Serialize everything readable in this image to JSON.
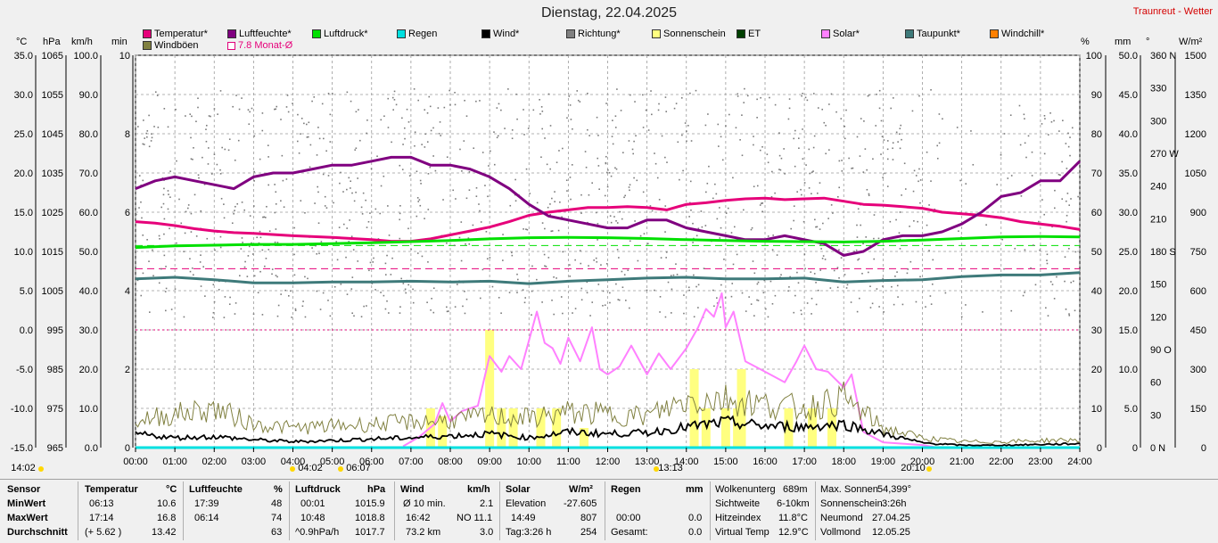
{
  "title": "Dienstag, 22.04.2025",
  "station": "Traunreut - Wetter",
  "legend": [
    {
      "label": "Temperatur*",
      "color": "#e6007a",
      "row": 1
    },
    {
      "label": "Luftfeuchte*",
      "color": "#800080",
      "row": 1
    },
    {
      "label": "Luftdruck*",
      "color": "#00e000",
      "row": 1
    },
    {
      "label": "Regen",
      "color": "#00e0e0",
      "row": 1
    },
    {
      "label": "Wind*",
      "color": "#000000",
      "row": 1
    },
    {
      "label": "Richtung*",
      "color": "#808080",
      "row": 1
    },
    {
      "label": "Sonnenschein",
      "color": "#ffff80",
      "row": 1
    },
    {
      "label": "ET",
      "color": "#004000",
      "row": 1
    },
    {
      "label": "Solar*",
      "color": "#ff80ff",
      "row": 1
    },
    {
      "label": "Taupunkt*",
      "color": "#3e7a7a",
      "row": 1
    },
    {
      "label": "Windchill*",
      "color": "#ff8000",
      "row": 1
    },
    {
      "label": "Windböen",
      "color": "#808040",
      "row": 2
    },
    {
      "label": "7.8 Monat-Ø",
      "color": "#e6007a",
      "row": 2,
      "outline": true
    }
  ],
  "units": {
    "c": "°C",
    "hpa": "hPa",
    "kmh": "km/h",
    "min": "min",
    "pct": "%",
    "mm": "mm",
    "deg": "°",
    "wm2": "W/m²"
  },
  "sun_markers": [
    "14:02",
    "04:02",
    "06:07",
    "13:13",
    "20:10"
  ],
  "chart_data": {
    "type": "line",
    "x_label_ticks": [
      "00:00",
      "01:00",
      "02:00",
      "03:00",
      "04:00",
      "05:00",
      "06:00",
      "07:00",
      "08:00",
      "09:00",
      "10:00",
      "11:00",
      "12:00",
      "13:00",
      "14:00",
      "15:00",
      "16:00",
      "17:00",
      "18:00",
      "19:00",
      "20:00",
      "21:00",
      "22:00",
      "23:00",
      "24:00"
    ],
    "xlim": [
      0,
      24
    ],
    "left_axes": {
      "temp_c": [
        "35.0",
        "30.0",
        "25.0",
        "20.0",
        "15.0",
        "10.0",
        "5.0",
        "0.0",
        "-5.0",
        "-10.0",
        "-15.0"
      ],
      "pressure_hpa": [
        "1065",
        "1055",
        "1045",
        "1035",
        "1025",
        "1015",
        "1005",
        "995",
        "985",
        "975",
        "965"
      ],
      "wind_kmh": [
        "100.0",
        "90.0",
        "80.0",
        "70.0",
        "60.0",
        "50.0",
        "40.0",
        "30.0",
        "20.0",
        "10.0",
        "0.0"
      ],
      "sun_min": [
        "10",
        "8",
        "6",
        "4",
        "2",
        "0"
      ]
    },
    "right_axes": {
      "humidity_pct": [
        "100",
        "90",
        "80",
        "70",
        "60",
        "50",
        "40",
        "30",
        "20",
        "10",
        "0"
      ],
      "rain_mm": [
        "50.0",
        "45.0",
        "40.0",
        "35.0",
        "30.0",
        "25.0",
        "20.0",
        "15.0",
        "10.0",
        "5.0",
        "0"
      ],
      "direction_deg": [
        "360 N",
        "330",
        "300",
        "270 W",
        "240",
        "210",
        "180 S",
        "150",
        "120",
        "90  O",
        "60",
        "30",
        "0   N"
      ],
      "solar_wm2": [
        "1500",
        "1350",
        "1200",
        "1050",
        "900",
        "750",
        "600",
        "450",
        "300",
        "150",
        "0"
      ]
    },
    "ylim_temp": [
      -15,
      35
    ],
    "series": [
      {
        "name": "Temperatur*",
        "color": "#e6007a",
        "unit": "°C",
        "x": [
          0,
          0.5,
          1,
          1.5,
          2,
          2.5,
          3,
          4,
          5,
          6,
          6.5,
          7,
          7.5,
          8,
          8.5,
          9,
          9.5,
          10,
          10.5,
          11,
          11.5,
          12,
          12.5,
          13,
          13.5,
          14,
          14.5,
          15,
          15.5,
          16,
          16.5,
          17,
          17.5,
          18,
          18.5,
          19,
          19.5,
          20,
          20.5,
          21,
          21.5,
          22,
          22.5,
          23,
          23.5,
          24
        ],
        "y": [
          13.8,
          13.6,
          13.3,
          12.9,
          12.6,
          12.4,
          12.3,
          12.0,
          11.8,
          11.5,
          11.3,
          11.3,
          11.6,
          12.1,
          12.6,
          13.1,
          13.8,
          14.6,
          15.0,
          15.3,
          15.6,
          15.6,
          15.7,
          15.6,
          15.3,
          16.0,
          16.2,
          16.5,
          16.7,
          16.8,
          16.6,
          16.7,
          16.8,
          16.4,
          16.0,
          15.9,
          15.7,
          15.5,
          15.0,
          14.8,
          14.6,
          14.3,
          13.8,
          13.5,
          13.2,
          12.8
        ]
      },
      {
        "name": "Luftfeuchte*",
        "color": "#800080",
        "unit": "%",
        "x": [
          0,
          0.5,
          1,
          1.5,
          2,
          2.5,
          3,
          3.5,
          4,
          4.5,
          5,
          5.5,
          6,
          6.5,
          7,
          7.5,
          8,
          8.5,
          9,
          9.5,
          10,
          10.5,
          11,
          11.5,
          12,
          12.5,
          13,
          13.5,
          14,
          14.5,
          15,
          15.5,
          16,
          16.5,
          17,
          17.5,
          18,
          18.5,
          19,
          19.5,
          20,
          20.5,
          21,
          21.5,
          22,
          22.5,
          23,
          23.5,
          24
        ],
        "y": [
          66,
          68,
          69,
          68,
          67,
          66,
          69,
          70,
          70,
          71,
          72,
          72,
          73,
          74,
          74,
          72,
          72,
          71,
          69,
          66,
          62,
          59,
          58,
          57,
          56,
          56,
          58,
          58,
          56,
          55,
          54,
          53,
          53,
          54,
          53,
          52,
          49,
          50,
          53,
          54,
          54,
          55,
          57,
          60,
          64,
          65,
          68,
          68,
          73
        ]
      },
      {
        "name": "Luftdruck*",
        "color": "#00e000",
        "unit": "hPa",
        "x": [
          0,
          1,
          2,
          3,
          4,
          5,
          6,
          7,
          8,
          9,
          10,
          11,
          12,
          13,
          14,
          15,
          16,
          17,
          18,
          19,
          20,
          21,
          22,
          23,
          24
        ],
        "y": [
          1016.0,
          1016.4,
          1016.6,
          1016.8,
          1016.8,
          1017.0,
          1017.2,
          1017.5,
          1017.8,
          1018.2,
          1018.5,
          1018.6,
          1018.5,
          1018.3,
          1018.0,
          1017.8,
          1017.6,
          1017.5,
          1017.4,
          1017.6,
          1017.9,
          1018.3,
          1018.7,
          1018.8,
          1018.7
        ]
      },
      {
        "name": "Taupunkt*",
        "color": "#3e7a7a",
        "unit": "°C",
        "x": [
          0,
          1,
          2,
          3,
          4,
          5,
          6,
          7,
          8,
          9,
          10,
          11,
          12,
          13,
          14,
          15,
          16,
          17,
          18,
          19,
          20,
          21,
          22,
          23,
          24
        ],
        "y": [
          6.5,
          6.7,
          6.4,
          6.0,
          6.0,
          6.1,
          6.1,
          6.2,
          6.1,
          6.2,
          5.9,
          6.2,
          6.4,
          6.6,
          6.7,
          6.5,
          6.5,
          6.6,
          6.1,
          6.3,
          6.4,
          6.8,
          7.0,
          7.0,
          7.3
        ]
      },
      {
        "name": "Solar*",
        "color": "#ff80ff",
        "unit": "W/m²",
        "x": [
          6.8,
          7.2,
          7.6,
          7.8,
          8,
          8.3,
          8.7,
          9,
          9.3,
          9.5,
          9.8,
          10,
          10.2,
          10.4,
          10.6,
          10.8,
          11,
          11.3,
          11.6,
          11.8,
          12,
          12.3,
          12.6,
          13,
          13.3,
          13.6,
          14,
          14.3,
          14.5,
          14.7,
          14.9,
          15,
          15.2,
          15.5,
          16,
          16.5,
          16.8,
          17,
          17.3,
          17.6,
          18,
          18.2,
          18.5,
          19,
          19.5,
          20,
          20.3
        ],
        "y": [
          5,
          40,
          90,
          170,
          100,
          140,
          160,
          350,
          290,
          350,
          300,
          410,
          520,
          400,
          380,
          320,
          420,
          330,
          460,
          300,
          280,
          310,
          390,
          280,
          360,
          300,
          380,
          460,
          530,
          500,
          590,
          460,
          520,
          330,
          290,
          250,
          330,
          390,
          300,
          290,
          230,
          280,
          60,
          20,
          15,
          10,
          2
        ]
      },
      {
        "name": "Wind*",
        "color": "#000000",
        "unit": "km/h",
        "x": [
          0,
          1,
          2,
          3,
          4,
          5,
          6,
          7,
          8,
          9,
          10,
          11,
          12,
          13,
          14,
          15,
          16,
          17,
          18,
          19,
          20,
          21,
          22,
          23,
          24
        ],
        "y": [
          3.5,
          2.5,
          2.8,
          2.0,
          1.5,
          1.8,
          2.2,
          2.5,
          3.0,
          3.5,
          2.5,
          4.0,
          3.5,
          3.8,
          5.2,
          6.5,
          5.5,
          5.3,
          6.0,
          3.5,
          1.2,
          0.6,
          0.6,
          0.8,
          1.0
        ]
      },
      {
        "name": "Windböen",
        "color": "#808040",
        "unit": "km/h",
        "x": [
          0,
          1,
          2,
          3,
          4,
          5,
          6,
          7,
          8,
          9,
          10,
          11,
          12,
          13,
          14,
          15,
          16,
          17,
          18,
          19,
          20,
          21,
          22,
          23,
          24
        ],
        "y": [
          7.0,
          8.5,
          10.0,
          6.0,
          5.0,
          5.5,
          6.0,
          6.5,
          7.0,
          8.0,
          7.5,
          9.0,
          8.5,
          8.0,
          12.0,
          12.5,
          11.0,
          10.0,
          12.5,
          5.0,
          2.5,
          1.5,
          1.5,
          1.8,
          2.0
        ]
      },
      {
        "name": "Regen",
        "color": "#00e0e0",
        "unit": "mm",
        "x": [
          0,
          24
        ],
        "y": [
          0,
          0
        ]
      }
    ],
    "sunshine_min": [
      {
        "x": 7.5,
        "v": 1.0
      },
      {
        "x": 7.8,
        "v": 0.8
      },
      {
        "x": 9.0,
        "v": 3.0
      },
      {
        "x": 9.3,
        "v": 1.0
      },
      {
        "x": 9.6,
        "v": 1.0
      },
      {
        "x": 10.3,
        "v": 1.0
      },
      {
        "x": 10.7,
        "v": 1.0
      },
      {
        "x": 11.4,
        "v": 0.5
      },
      {
        "x": 14.2,
        "v": 2.0
      },
      {
        "x": 14.5,
        "v": 1.0
      },
      {
        "x": 15.0,
        "v": 1.0
      },
      {
        "x": 15.3,
        "v": 1.0
      },
      {
        "x": 15.4,
        "v": 2.0
      },
      {
        "x": 16.6,
        "v": 1.0
      },
      {
        "x": 17.2,
        "v": 1.0
      },
      {
        "x": 17.7,
        "v": 1.0
      }
    ],
    "reference_lines": [
      {
        "label": "7.8 Monat-Ø",
        "unit": "°C",
        "value": 7.8,
        "color": "#e6007a",
        "style": "dashed"
      },
      {
        "unit": "hPa",
        "value": 1016.5,
        "color": "#00e000",
        "style": "dashed"
      },
      {
        "unit": "°C",
        "value": 0,
        "color": "#e6007a",
        "style": "dotted"
      }
    ],
    "direction_scatter_deg_range": [
      120,
      330
    ],
    "grid": true
  },
  "table": {
    "rows": [
      "Sensor",
      "MinWert",
      "MaxWert",
      "Durchschnitt"
    ],
    "temperatur": {
      "header": "Temperatur",
      "unit": "°C",
      "min_time": "06:13",
      "min": "10.6",
      "max_time": "17:14",
      "max": "16.8",
      "avg_note": "(+ 5.62 )",
      "avg": "13.42"
    },
    "luftfeuchte": {
      "header": "Luftfeuchte",
      "unit": "%",
      "min_time": "17:39",
      "min": "48",
      "max_time": "06:14",
      "max": "74",
      "avg": "63"
    },
    "luftdruck": {
      "header": "Luftdruck",
      "unit": "hPa",
      "min_time": "00:01",
      "min": "1015.9",
      "max_time": "10:48",
      "max": "1018.8",
      "avg_note": "^0.9hPa/h",
      "avg": "1017.7"
    },
    "wind": {
      "header": "Wind",
      "unit": "km/h",
      "r1_label": "Ø 10 min.",
      "r1": "2.1",
      "r2_time": "16:42",
      "r2": "NO 11.1",
      "r3_label": "73.2 km",
      "r3": "3.0"
    },
    "solar": {
      "header": "Solar",
      "unit": "W/m²",
      "r1_label": "Elevation",
      "r1": "-27.605",
      "r2_time": "14:49",
      "r2": "807",
      "r3_label": "Tag:3:26 h",
      "r3": "254"
    },
    "regen": {
      "header": "Regen",
      "unit": "mm",
      "r1": "",
      "r2_time": "00:00",
      "r2": "0.0",
      "r3_label": "Gesamt:",
      "r3": "0.0"
    },
    "misc1": [
      {
        "label": "Wolkenunterg",
        "value": "689m"
      },
      {
        "label": "Sichtweite",
        "value": "6-10km"
      },
      {
        "label": "Hitzeindex",
        "value": "11.8°C"
      },
      {
        "label": "Virtual Temp",
        "value": "12.9°C"
      }
    ],
    "misc2": [
      {
        "label": "Max. Sonnen",
        "value": "54,399°"
      },
      {
        "label": "Sonnenschein",
        "value": "3:26h"
      },
      {
        "label": "Neumond",
        "value": "27.04.25"
      },
      {
        "label": "Vollmond",
        "value": "12.05.25"
      }
    ]
  }
}
